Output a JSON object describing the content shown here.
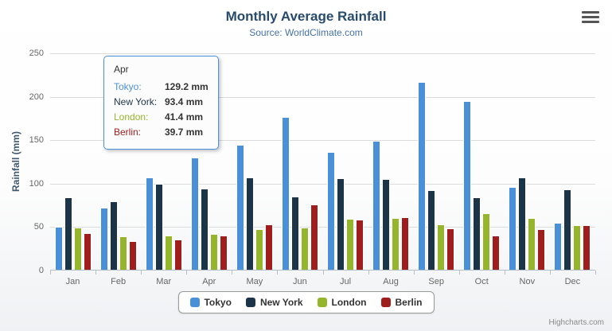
{
  "title": "Monthly Average Rainfall",
  "subtitle": "Source: WorldClimate.com",
  "y_axis_title": "Rainfall (mm)",
  "credits": "Highcharts.com",
  "icons": {
    "menu": "hamburger-icon"
  },
  "chart_data": {
    "type": "bar",
    "title": "Monthly Average Rainfall",
    "subtitle": "Source: WorldClimate.com",
    "categories": [
      "Jan",
      "Feb",
      "Mar",
      "Apr",
      "May",
      "Jun",
      "Jul",
      "Aug",
      "Sep",
      "Oct",
      "Nov",
      "Dec"
    ],
    "series": [
      {
        "name": "Tokyo",
        "color": "#4a90d9",
        "values": [
          49.9,
          71.5,
          106.4,
          129.2,
          144.0,
          176.0,
          135.6,
          148.5,
          216.4,
          194.1,
          95.6,
          54.4
        ]
      },
      {
        "name": "New York",
        "color": "#1c3448",
        "values": [
          83.6,
          78.8,
          98.5,
          93.4,
          106.0,
          84.5,
          105.0,
          104.3,
          91.2,
          83.5,
          106.6,
          92.3
        ]
      },
      {
        "name": "London",
        "color": "#94b52c",
        "values": [
          48.9,
          38.8,
          39.3,
          41.4,
          47.0,
          48.3,
          59.0,
          59.6,
          52.4,
          65.2,
          59.3,
          51.2
        ]
      },
      {
        "name": "Berlin",
        "color": "#a01d1d",
        "values": [
          42.4,
          33.2,
          34.5,
          39.7,
          52.6,
          75.5,
          57.4,
          60.4,
          47.6,
          39.1,
          46.8,
          51.1
        ]
      }
    ],
    "xlabel": "",
    "ylabel": "Rainfall (mm)",
    "ylim": [
      0,
      250
    ],
    "yticks": [
      0,
      50,
      100,
      150,
      200,
      250
    ],
    "grid": true,
    "legend_position": "bottom"
  },
  "tooltip": {
    "header": "Apr",
    "rows": [
      {
        "label": "Tokyo:",
        "value": "129.2 mm"
      },
      {
        "label": "New York:",
        "value": "93.4 mm"
      },
      {
        "label": "London:",
        "value": "41.4 mm"
      },
      {
        "label": "Berlin:",
        "value": "39.7 mm"
      }
    ]
  }
}
